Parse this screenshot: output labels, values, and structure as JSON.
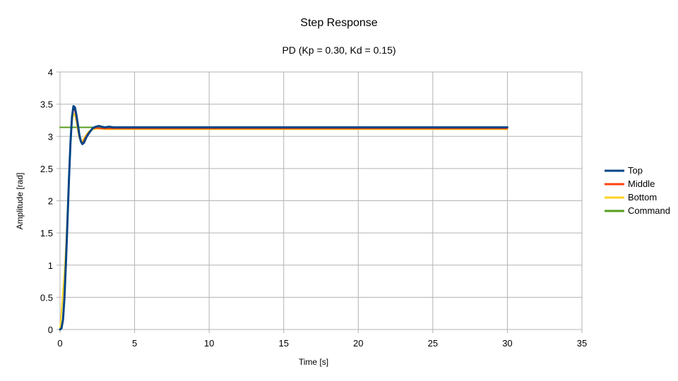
{
  "chart_data": {
    "type": "line",
    "title": "Step Response",
    "subtitle": "PD (Kp = 0.30, Kd = 0.15)",
    "xlabel": "Time [s]",
    "ylabel": "Amplitude [rad]",
    "xlim": [
      0,
      35
    ],
    "ylim": [
      0,
      4
    ],
    "xticks": [
      "0",
      "5",
      "10",
      "15",
      "20",
      "25",
      "30",
      "35"
    ],
    "yticks": [
      "0",
      "0.5",
      "1",
      "1.5",
      "2",
      "2.5",
      "3",
      "3.5",
      "4"
    ],
    "grid": true,
    "legend_position": "right",
    "series": [
      {
        "name": "Top",
        "color": "#004586",
        "points": [
          [
            0,
            0
          ],
          [
            0.1,
            0.02
          ],
          [
            0.2,
            0.15
          ],
          [
            0.3,
            0.5
          ],
          [
            0.4,
            1.05
          ],
          [
            0.5,
            1.7
          ],
          [
            0.6,
            2.35
          ],
          [
            0.7,
            2.9
          ],
          [
            0.8,
            3.3
          ],
          [
            0.9,
            3.47
          ],
          [
            1.0,
            3.45
          ],
          [
            1.1,
            3.33
          ],
          [
            1.2,
            3.18
          ],
          [
            1.3,
            3.02
          ],
          [
            1.4,
            2.92
          ],
          [
            1.5,
            2.88
          ],
          [
            1.6,
            2.9
          ],
          [
            1.7,
            2.95
          ],
          [
            1.8,
            3.0
          ],
          [
            2.0,
            3.07
          ],
          [
            2.2,
            3.13
          ],
          [
            2.4,
            3.15
          ],
          [
            2.6,
            3.16
          ],
          [
            2.8,
            3.15
          ],
          [
            3.0,
            3.14
          ],
          [
            3.3,
            3.15
          ],
          [
            3.6,
            3.14
          ],
          [
            4.0,
            3.14
          ],
          [
            5.0,
            3.14
          ],
          [
            10,
            3.14
          ],
          [
            20,
            3.14
          ],
          [
            30,
            3.14
          ]
        ]
      },
      {
        "name": "Middle",
        "color": "#ff420e",
        "points": [
          [
            0,
            0
          ],
          [
            0.1,
            0.03
          ],
          [
            0.2,
            0.18
          ],
          [
            0.3,
            0.55
          ],
          [
            0.4,
            1.1
          ],
          [
            0.5,
            1.75
          ],
          [
            0.6,
            2.38
          ],
          [
            0.7,
            2.9
          ],
          [
            0.8,
            3.27
          ],
          [
            0.9,
            3.42
          ],
          [
            1.0,
            3.4
          ],
          [
            1.1,
            3.28
          ],
          [
            1.2,
            3.13
          ],
          [
            1.3,
            2.99
          ],
          [
            1.4,
            2.91
          ],
          [
            1.5,
            2.9
          ],
          [
            1.6,
            2.93
          ],
          [
            1.7,
            2.98
          ],
          [
            1.8,
            3.02
          ],
          [
            2.0,
            3.08
          ],
          [
            2.2,
            3.12
          ],
          [
            2.4,
            3.13
          ],
          [
            2.8,
            3.12
          ],
          [
            3.2,
            3.12
          ],
          [
            4.0,
            3.12
          ],
          [
            10,
            3.12
          ],
          [
            20,
            3.12
          ],
          [
            30,
            3.12
          ]
        ]
      },
      {
        "name": "Bottom",
        "color": "#ffd320",
        "points": [
          [
            0,
            0
          ],
          [
            0.05,
            0.15
          ],
          [
            0.15,
            0.45
          ],
          [
            0.3,
            0.9
          ],
          [
            0.4,
            1.3
          ],
          [
            0.5,
            1.85
          ],
          [
            0.6,
            2.4
          ],
          [
            0.7,
            2.88
          ],
          [
            0.8,
            3.22
          ],
          [
            0.9,
            3.36
          ],
          [
            1.0,
            3.33
          ],
          [
            1.1,
            3.22
          ],
          [
            1.2,
            3.08
          ],
          [
            1.3,
            2.97
          ],
          [
            1.4,
            2.92
          ],
          [
            1.5,
            2.93
          ],
          [
            1.6,
            2.97
          ],
          [
            1.7,
            3.0
          ],
          [
            1.8,
            3.04
          ],
          [
            2.0,
            3.09
          ],
          [
            2.2,
            3.11
          ],
          [
            2.6,
            3.12
          ],
          [
            3.0,
            3.11
          ],
          [
            4.0,
            3.11
          ],
          [
            10,
            3.11
          ],
          [
            20,
            3.11
          ],
          [
            30,
            3.11
          ]
        ]
      },
      {
        "name": "Command",
        "color": "#579d1c",
        "points": [
          [
            0,
            3.14
          ],
          [
            30,
            3.14
          ]
        ]
      }
    ]
  }
}
